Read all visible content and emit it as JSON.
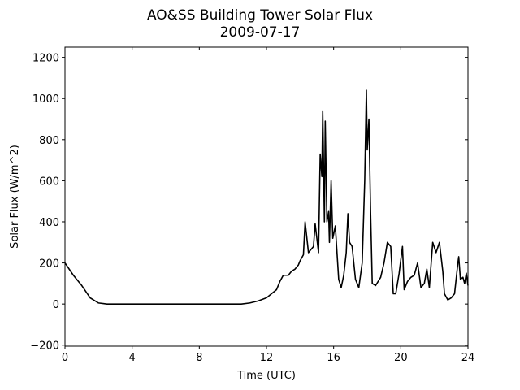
{
  "chart_data": {
    "type": "line",
    "title": "AO&SS Building Tower Solar Flux",
    "subtitle": "2009-07-17",
    "xlabel": "Time (UTC)",
    "ylabel": "Solar Flux (W/m^2)",
    "xlim": [
      0,
      24
    ],
    "xticks": [
      0,
      4,
      8,
      12,
      16,
      20,
      24
    ],
    "ylim": [
      -205,
      1250
    ],
    "yticks": [
      {
        "value": -200,
        "label": "−200"
      },
      0,
      200,
      400,
      600,
      800,
      1000,
      1200
    ],
    "grid": false,
    "series": [
      {
        "color": "#000000",
        "x": [
          0,
          0.5,
          1,
          1.5,
          2,
          2.5,
          4,
          6,
          8,
          10,
          10.5,
          11,
          11.5,
          12,
          12.3,
          12.6,
          12.8,
          13,
          13.3,
          13.5,
          13.7,
          13.9,
          14,
          14.2,
          14.3,
          14.5,
          14.8,
          14.9,
          15.1,
          15.2,
          15.3,
          15.35,
          15.45,
          15.5,
          15.6,
          15.7,
          15.75,
          15.85,
          15.95,
          16.1,
          16.3,
          16.45,
          16.6,
          16.75,
          16.85,
          16.95,
          17.1,
          17.3,
          17.5,
          17.7,
          17.85,
          17.95,
          18.0,
          18.1,
          18.2,
          18.3,
          18.5,
          18.8,
          19.0,
          19.2,
          19.4,
          19.55,
          19.7,
          19.9,
          20.1,
          20.2,
          20.4,
          20.6,
          20.8,
          21.0,
          21.2,
          21.4,
          21.55,
          21.7,
          21.9,
          22.1,
          22.3,
          22.5,
          22.6,
          22.8,
          23.0,
          23.2,
          23.4,
          23.45,
          23.55,
          23.7,
          23.8,
          23.9,
          24
        ],
        "values": [
          200,
          140,
          90,
          30,
          5,
          0,
          0,
          0,
          0,
          0,
          0,
          5,
          15,
          30,
          50,
          70,
          110,
          140,
          140,
          160,
          170,
          190,
          210,
          240,
          400,
          250,
          280,
          390,
          250,
          730,
          620,
          940,
          400,
          890,
          400,
          450,
          300,
          600,
          320,
          380,
          120,
          80,
          140,
          250,
          440,
          300,
          280,
          120,
          80,
          200,
          600,
          1040,
          750,
          900,
          450,
          100,
          90,
          130,
          200,
          300,
          280,
          50,
          50,
          150,
          280,
          70,
          110,
          130,
          140,
          200,
          80,
          100,
          170,
          80,
          300,
          250,
          300,
          160,
          50,
          20,
          30,
          50,
          200,
          230,
          120,
          130,
          100,
          150,
          90
        ]
      }
    ]
  }
}
